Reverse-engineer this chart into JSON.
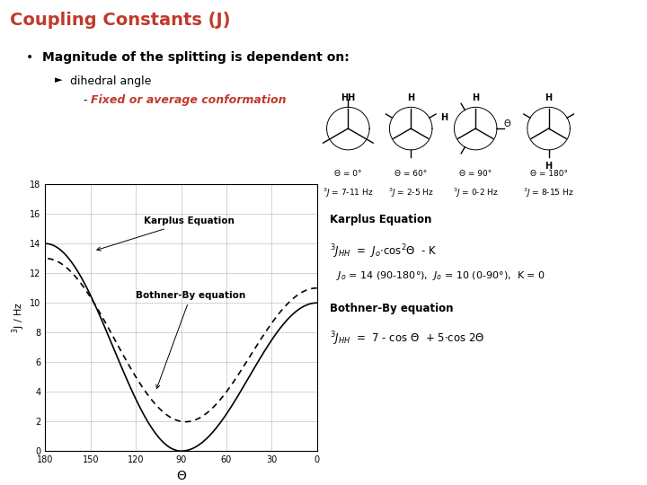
{
  "title": "Coupling Constants (J)",
  "title_color": "#C0392B",
  "bg_color": "#FFFFFF",
  "bullet_text": "Magnitude of the splitting is dependent on:",
  "sub_bullet": "dihedral angle",
  "sub_sub_bullet": "Fixed or average conformation",
  "sub_sub_color": "#C0392B",
  "plot_xlabel": "Θ",
  "plot_ylabel": "3J / Hz",
  "karplus_label": "Karplus Equation",
  "bothner_label": "Bothner-By equation"
}
